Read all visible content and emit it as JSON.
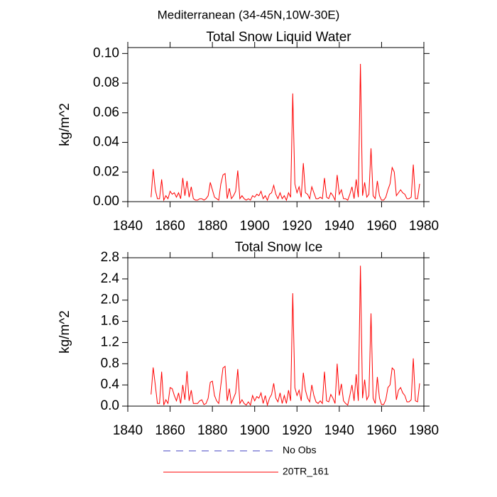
{
  "title": "Mediterranean (34-45N,10W-30E)",
  "chart_data": [
    {
      "type": "line",
      "title": "Total Snow Liquid Water",
      "ylabel": "kg/m^2",
      "x": [
        1851,
        1852,
        1853,
        1854,
        1855,
        1856,
        1857,
        1858,
        1859,
        1860,
        1861,
        1862,
        1863,
        1864,
        1865,
        1866,
        1867,
        1868,
        1869,
        1870,
        1871,
        1872,
        1873,
        1874,
        1875,
        1876,
        1877,
        1878,
        1879,
        1880,
        1881,
        1882,
        1883,
        1884,
        1885,
        1886,
        1887,
        1888,
        1889,
        1890,
        1891,
        1892,
        1893,
        1894,
        1895,
        1896,
        1897,
        1898,
        1899,
        1900,
        1901,
        1902,
        1903,
        1904,
        1905,
        1906,
        1907,
        1908,
        1909,
        1910,
        1911,
        1912,
        1913,
        1914,
        1915,
        1916,
        1917,
        1918,
        1919,
        1920,
        1921,
        1922,
        1923,
        1924,
        1925,
        1926,
        1927,
        1928,
        1929,
        1930,
        1931,
        1932,
        1933,
        1934,
        1935,
        1936,
        1937,
        1938,
        1939,
        1940,
        1941,
        1942,
        1943,
        1944,
        1945,
        1946,
        1947,
        1948,
        1949,
        1950,
        1951,
        1952,
        1953,
        1954,
        1955,
        1956,
        1957,
        1958,
        1959,
        1960,
        1961,
        1962,
        1963,
        1964,
        1965,
        1966,
        1967,
        1968,
        1969,
        1970,
        1971,
        1972,
        1973,
        1974,
        1975,
        1976,
        1977,
        1978
      ],
      "series": [
        {
          "name": "20TR_161",
          "color": "#ff0000",
          "values": [
            0.003,
            0.022,
            0.008,
            0.002,
            0.002,
            0.015,
            0.001,
            0.004,
            0.002,
            0.007,
            0.005,
            0.006,
            0.003,
            0.006,
            0.002,
            0.016,
            0.004,
            0.014,
            0.003,
            0.01,
            0.002,
            0.001,
            0.001,
            0.002,
            0.002,
            0.001,
            0.002,
            0.004,
            0.013,
            0.008,
            0.003,
            0.002,
            0.001,
            0.012,
            0.018,
            0.019,
            0.002,
            0.009,
            0.002,
            0.004,
            0.007,
            0.021,
            0.002,
            0.004,
            0.002,
            0.001,
            0.002,
            0.001,
            0.004,
            0.003,
            0.005,
            0.004,
            0.007,
            0.002,
            0.004,
            0.001,
            0.005,
            0.006,
            0.011,
            0.005,
            0.002,
            0.006,
            0.002,
            0.004,
            0.001,
            0.006,
            0.003,
            0.073,
            0.012,
            0.006,
            0.01,
            0.003,
            0.026,
            0.006,
            0.005,
            0.002,
            0.01,
            0.006,
            0.002,
            0.002,
            0.003,
            0.002,
            0.016,
            0.003,
            0.002,
            0.006,
            0.004,
            0.001,
            0.018,
            0.005,
            0.008,
            0.002,
            0.002,
            0.001,
            0.005,
            0.01,
            0.002,
            0.015,
            0.003,
            0.093,
            0.004,
            0.013,
            0.003,
            0.005,
            0.036,
            0.004,
            0.002,
            0.014,
            0.004,
            0.001,
            0.001,
            0.003,
            0.008,
            0.012,
            0.023,
            0.02,
            0.004,
            0.006,
            0.008,
            0.006,
            0.005,
            0.002,
            0.002,
            0.003,
            0.025,
            0.002,
            0.002,
            0.012
          ]
        }
      ],
      "xlim": [
        1840,
        1980
      ],
      "xticks": [
        1840,
        1860,
        1880,
        1900,
        1920,
        1940,
        1960,
        1980
      ],
      "ylim": [
        0,
        0.104
      ],
      "yticks": [
        {
          "value": 0,
          "label": "0.00"
        },
        {
          "value": 0.02,
          "label": "0.02"
        },
        {
          "value": 0.04,
          "label": "0.04"
        },
        {
          "value": 0.06,
          "label": "0.06"
        },
        {
          "value": 0.08,
          "label": "0.08"
        },
        {
          "value": 0.1,
          "label": "0.10"
        }
      ]
    },
    {
      "type": "line",
      "title": "Total Snow Ice",
      "ylabel": "kg/m^2",
      "x": [
        1851,
        1852,
        1853,
        1854,
        1855,
        1856,
        1857,
        1858,
        1859,
        1860,
        1861,
        1862,
        1863,
        1864,
        1865,
        1866,
        1867,
        1868,
        1869,
        1870,
        1871,
        1872,
        1873,
        1874,
        1875,
        1876,
        1877,
        1878,
        1879,
        1880,
        1881,
        1882,
        1883,
        1884,
        1885,
        1886,
        1887,
        1888,
        1889,
        1890,
        1891,
        1892,
        1893,
        1894,
        1895,
        1896,
        1897,
        1898,
        1899,
        1900,
        1901,
        1902,
        1903,
        1904,
        1905,
        1906,
        1907,
        1908,
        1909,
        1910,
        1911,
        1912,
        1913,
        1914,
        1915,
        1916,
        1917,
        1918,
        1919,
        1920,
        1921,
        1922,
        1923,
        1924,
        1925,
        1926,
        1927,
        1928,
        1929,
        1930,
        1931,
        1932,
        1933,
        1934,
        1935,
        1936,
        1937,
        1938,
        1939,
        1940,
        1941,
        1942,
        1943,
        1944,
        1945,
        1946,
        1947,
        1948,
        1949,
        1950,
        1951,
        1952,
        1953,
        1954,
        1955,
        1956,
        1957,
        1958,
        1959,
        1960,
        1961,
        1962,
        1963,
        1964,
        1965,
        1966,
        1967,
        1968,
        1969,
        1970,
        1971,
        1972,
        1973,
        1974,
        1975,
        1976,
        1977,
        1978
      ],
      "series": [
        {
          "name": "20TR_161",
          "color": "#ff0000",
          "values": [
            0.22,
            0.73,
            0.4,
            0.05,
            0.05,
            0.65,
            0.02,
            0.12,
            0.05,
            0.35,
            0.33,
            0.2,
            0.1,
            0.25,
            0.05,
            0.4,
            0.12,
            0.66,
            0.1,
            0.3,
            0.05,
            0.05,
            0.05,
            0.1,
            0.12,
            0.03,
            0.05,
            0.15,
            0.45,
            0.47,
            0.2,
            0.1,
            0.05,
            0.4,
            0.72,
            0.75,
            0.1,
            0.33,
            0.05,
            0.15,
            0.25,
            0.7,
            0.05,
            0.12,
            0.05,
            0.02,
            0.08,
            0.02,
            0.2,
            0.1,
            0.18,
            0.15,
            0.25,
            0.05,
            0.2,
            0.02,
            0.15,
            0.22,
            0.43,
            0.15,
            0.08,
            0.25,
            0.05,
            0.2,
            0.05,
            0.3,
            0.1,
            2.13,
            0.35,
            0.2,
            0.3,
            0.1,
            0.63,
            0.3,
            0.15,
            0.08,
            0.4,
            0.2,
            0.08,
            0.05,
            0.1,
            0.05,
            0.65,
            0.1,
            0.08,
            0.22,
            0.15,
            0.05,
            0.8,
            0.2,
            0.42,
            0.1,
            0.05,
            0.02,
            0.2,
            0.4,
            0.1,
            0.6,
            0.1,
            2.65,
            0.15,
            0.5,
            0.12,
            0.2,
            1.75,
            0.15,
            0.05,
            0.55,
            0.15,
            0.03,
            0.03,
            0.12,
            0.35,
            0.4,
            0.72,
            0.68,
            0.12,
            0.3,
            0.35,
            0.25,
            0.2,
            0.08,
            0.08,
            0.12,
            0.9,
            0.1,
            0.08,
            0.43
          ]
        }
      ],
      "xlim": [
        1840,
        1980
      ],
      "xticks": [
        1840,
        1860,
        1880,
        1900,
        1920,
        1940,
        1960,
        1980
      ],
      "ylim": [
        0,
        2.8
      ],
      "yticks": [
        {
          "value": 0,
          "label": "0.0"
        },
        0.4,
        0.8,
        1.2,
        1.6,
        {
          "value": 2,
          "label": "2.0"
        },
        2.4,
        2.8
      ]
    }
  ],
  "legend": [
    {
      "name": "No Obs",
      "color": "#4040c0",
      "dash": true
    },
    {
      "name": "20TR_161",
      "color": "#ff0000",
      "dash": false
    }
  ]
}
